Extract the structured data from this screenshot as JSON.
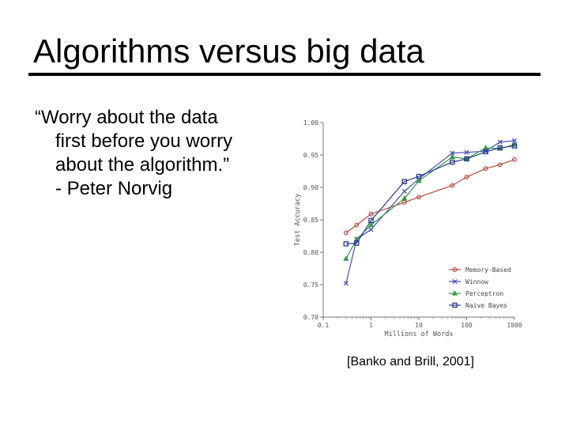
{
  "slide": {
    "title": "Algorithms versus big data",
    "quote_lines": [
      "“Worry about the data",
      "first before you worry",
      "about the algorithm.”",
      "- Peter Norvig"
    ],
    "citation": "[Banko and Brill, 2001]"
  },
  "chart_data": {
    "type": "line",
    "xlabel": "Millions of Words",
    "ylabel": "Test Accuracy",
    "x_scale": "log",
    "xlim": [
      0.1,
      1000
    ],
    "ylim": [
      0.7,
      1.0
    ],
    "x_ticks": [
      0.1,
      1,
      10,
      100,
      1000
    ],
    "x_tick_labels": [
      "0.1",
      "1",
      "10",
      "100",
      "1000"
    ],
    "y_ticks": [
      0.7,
      0.75,
      0.8,
      0.85,
      0.9,
      0.95,
      1.0
    ],
    "y_tick_labels": [
      "0.70",
      "0.75",
      "0.80",
      "0.85",
      "0.90",
      "0.95",
      "1.00"
    ],
    "grid": false,
    "legend_position": "bottom-right",
    "series": [
      {
        "name": "Memory-Based",
        "color": "#b44a3e",
        "marker": "circle",
        "x": [
          0.3,
          0.5,
          1,
          5,
          10,
          50,
          100,
          250,
          500,
          1000
        ],
        "y": [
          0.83,
          0.842,
          0.859,
          0.877,
          0.885,
          0.903,
          0.916,
          0.929,
          0.935,
          0.943
        ]
      },
      {
        "name": "Winnow",
        "color": "#4a4fb4",
        "marker": "x",
        "x": [
          0.3,
          0.5,
          1,
          5,
          10,
          50,
          100,
          250,
          500,
          1000
        ],
        "y": [
          0.752,
          0.82,
          0.835,
          0.894,
          0.913,
          0.953,
          0.954,
          0.956,
          0.97,
          0.972
        ]
      },
      {
        "name": "Perceptron",
        "color": "#3a9a4a",
        "marker": "triangle",
        "x": [
          0.3,
          0.5,
          1,
          5,
          10,
          50,
          100,
          250,
          500,
          1000
        ],
        "y": [
          0.79,
          0.82,
          0.842,
          0.883,
          0.91,
          0.947,
          0.944,
          0.961,
          0.96,
          0.966
        ]
      },
      {
        "name": "Naive Bayes",
        "color": "#283a8c",
        "marker": "square",
        "x": [
          0.3,
          0.5,
          1,
          5,
          10,
          50,
          100,
          250,
          500,
          1000
        ],
        "y": [
          0.813,
          0.814,
          0.849,
          0.909,
          0.917,
          0.939,
          0.944,
          0.955,
          0.961,
          0.964
        ]
      }
    ]
  }
}
